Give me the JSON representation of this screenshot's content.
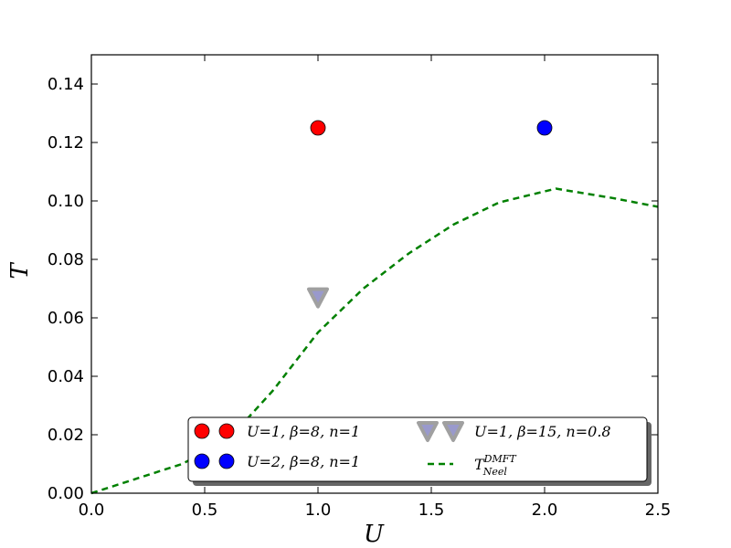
{
  "chart_data": {
    "type": "scatter",
    "xlabel": "U",
    "ylabel": "T",
    "xlim": [
      0.0,
      2.5
    ],
    "ylim": [
      0.0,
      0.15
    ],
    "xticks": [
      "0.0",
      "0.5",
      "1.0",
      "1.5",
      "2.0",
      "2.5"
    ],
    "xtick_values": [
      0.0,
      0.5,
      1.0,
      1.5,
      2.0,
      2.5
    ],
    "yticks": [
      "0.00",
      "0.02",
      "0.04",
      "0.06",
      "0.08",
      "0.10",
      "0.12",
      "0.14"
    ],
    "ytick_values": [
      0.0,
      0.02,
      0.04,
      0.06,
      0.08,
      0.1,
      0.12,
      0.14
    ],
    "grid": false,
    "legend_position": "lower-right",
    "series": [
      {
        "name": "U=1, β=8, n=1",
        "kind": "scatter",
        "marker": "circle",
        "color": "#ff0000",
        "points": [
          {
            "x": 1.0,
            "y": 0.125
          }
        ]
      },
      {
        "name": "U=2, β=8, n=1",
        "kind": "scatter",
        "marker": "circle",
        "color": "#0000ff",
        "points": [
          {
            "x": 2.0,
            "y": 0.125
          }
        ]
      },
      {
        "name": "U=1, β=15, n=0.8",
        "kind": "scatter",
        "marker": "triangle-down",
        "color": "#9999cc",
        "edge_color": "#a0a0a0",
        "points": [
          {
            "x": 1.0,
            "y": 0.067
          }
        ]
      },
      {
        "name": "T_Neel^DMFT",
        "kind": "line",
        "style": "dashed",
        "color": "#008000",
        "points": [
          {
            "x": 0.0,
            "y": 0.0
          },
          {
            "x": 0.4,
            "y": 0.01
          },
          {
            "x": 0.6,
            "y": 0.018
          },
          {
            "x": 0.8,
            "y": 0.035
          },
          {
            "x": 1.0,
            "y": 0.055
          },
          {
            "x": 1.2,
            "y": 0.07
          },
          {
            "x": 1.4,
            "y": 0.082
          },
          {
            "x": 1.6,
            "y": 0.092
          },
          {
            "x": 1.8,
            "y": 0.0995
          },
          {
            "x": 2.05,
            "y": 0.1042
          },
          {
            "x": 2.3,
            "y": 0.101
          },
          {
            "x": 2.5,
            "y": 0.098
          }
        ]
      }
    ],
    "legend": {
      "label1": "U=1, β=8, n=1",
      "label2": "U=2, β=8, n=1",
      "label3": "U=1, β=15, n=0.8",
      "label4_main": "T",
      "label4_sub": "Neel",
      "label4_sup": "DMFT"
    }
  }
}
